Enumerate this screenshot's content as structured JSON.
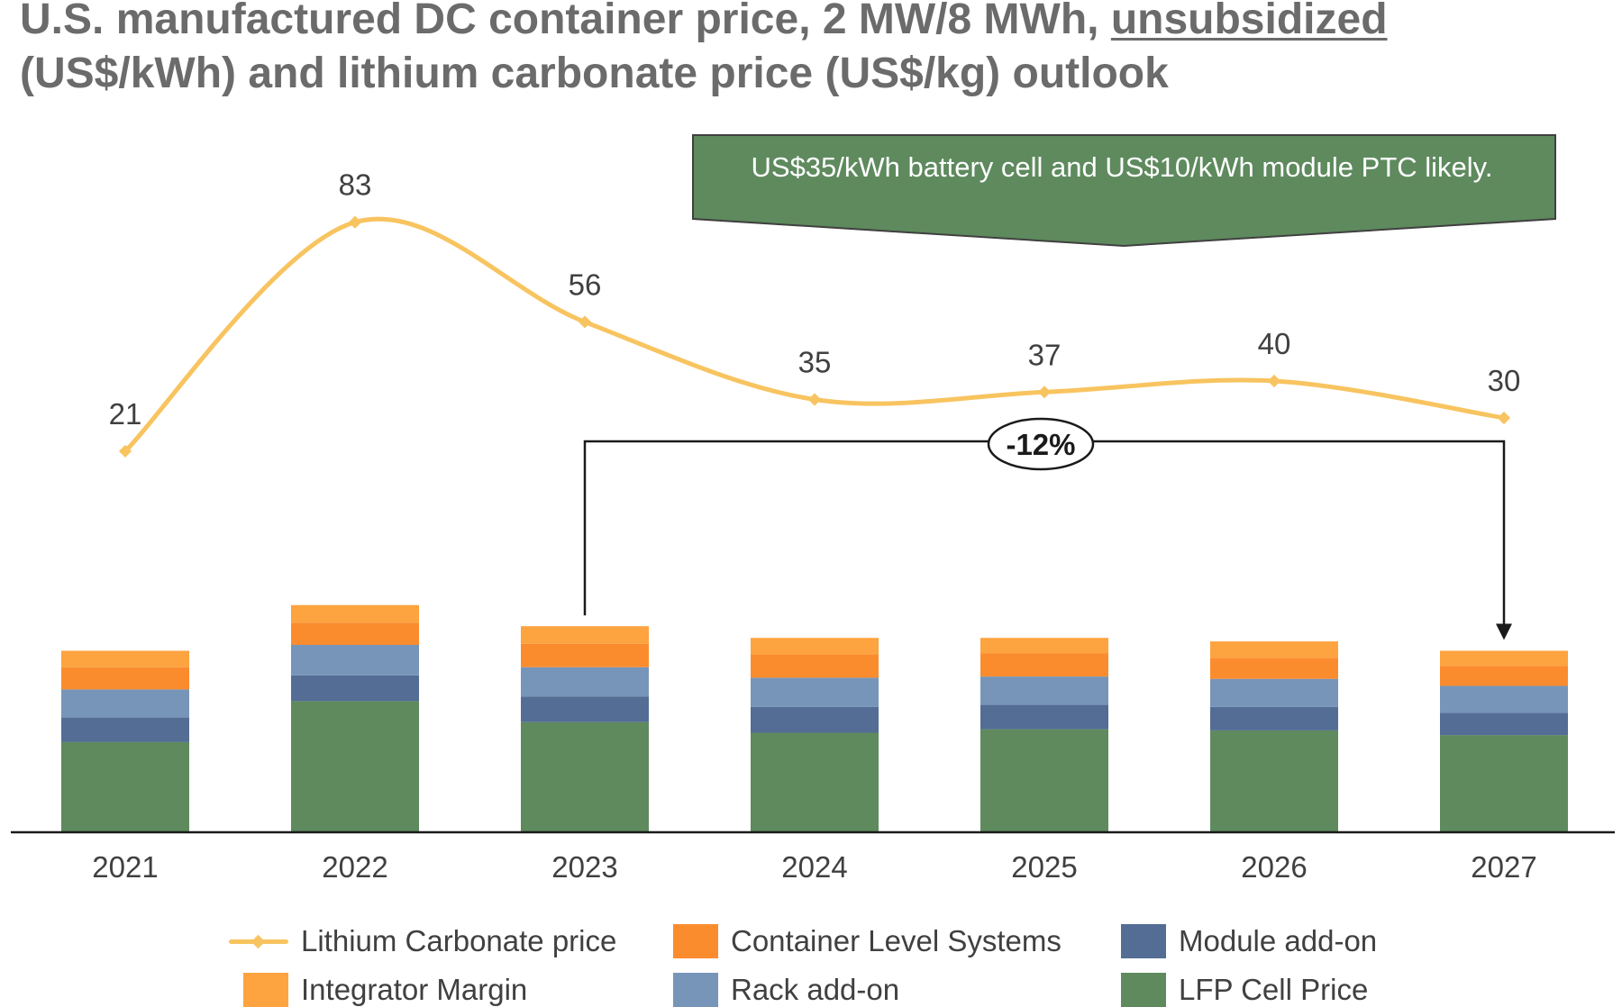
{
  "title_parts": {
    "line1_before": "U.S. manufactured DC container price, 2 MW/8 MWh, ",
    "line1_underlined": "unsubsidized",
    "line2": "(US$/kWh) and lithium carbonate price (US$/kg) outlook"
  },
  "callout": {
    "text": "US$35/kWh battery cell and US$10/kWh module PTC likely.",
    "color": "#5e8a5e"
  },
  "change_annotation": {
    "label": "-12%",
    "from": "2023",
    "to": "2027"
  },
  "chart_data": {
    "type": "bar",
    "stacked": true,
    "categories": [
      "2021",
      "2022",
      "2023",
      "2024",
      "2025",
      "2026",
      "2027"
    ],
    "series": [
      {
        "name": "LFP Cell Price",
        "color": "#5e8a5e",
        "values": [
          77,
          112,
          94,
          85,
          88,
          87,
          83
        ]
      },
      {
        "name": "Module add-on",
        "color": "#536d95",
        "values": [
          21,
          22,
          22,
          22,
          21,
          20,
          19
        ]
      },
      {
        "name": "Rack add-on",
        "color": "#7795b9",
        "values": [
          24,
          26,
          25,
          25,
          24,
          24,
          23
        ]
      },
      {
        "name": "Container Level Systems",
        "color": "#fb8c2e",
        "values": [
          19,
          19,
          20,
          20,
          20,
          18,
          17
        ]
      },
      {
        "name": "Integrator Margin",
        "color": "#fda33f",
        "values": [
          14,
          15,
          15,
          14,
          13,
          14,
          13
        ]
      }
    ],
    "line_series": {
      "name": "Lithium Carbonate price",
      "color": "#f8c460",
      "values": [
        21,
        83,
        56,
        35,
        37,
        40,
        30
      ],
      "labels": [
        "21",
        "83",
        "56",
        "35",
        "37",
        "40",
        "30"
      ]
    },
    "legend_placement": "bottom",
    "grid": false
  }
}
